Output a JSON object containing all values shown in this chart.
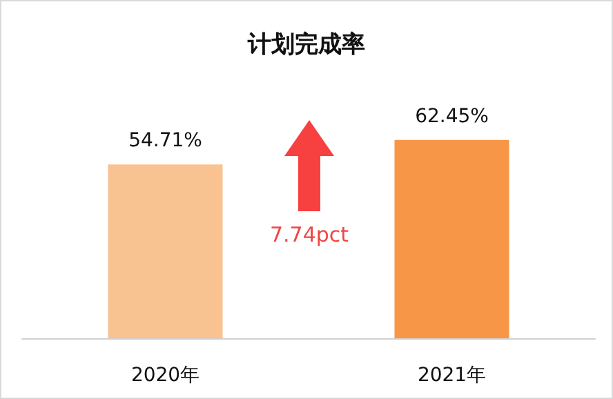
{
  "chart_data": {
    "type": "bar",
    "title": "计划完成率",
    "categories": [
      "2020年",
      "2021年"
    ],
    "values": [
      54.71,
      62.45
    ],
    "colors": [
      "#f8c291",
      "#f79646"
    ],
    "value_labels": [
      "54.71%",
      "62.45%"
    ],
    "annotations": [
      "7.74pct"
    ]
  }
}
